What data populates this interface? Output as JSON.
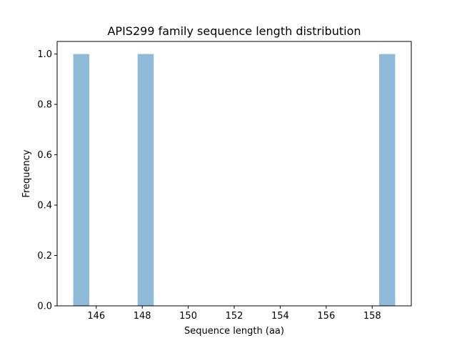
{
  "chart_data": {
    "type": "bar",
    "title": "APIS299 family sequence length distribution",
    "xlabel": "Sequence length (aa)",
    "ylabel": "Frequency",
    "bins": [
      {
        "start": 145.0,
        "end": 145.7,
        "count": 1
      },
      {
        "start": 147.8,
        "end": 148.5,
        "count": 1
      },
      {
        "start": 158.3,
        "end": 159.0,
        "count": 1
      }
    ],
    "xlim": [
      144.3,
      159.7
    ],
    "ylim": [
      0,
      1.05
    ],
    "xticks": [
      "146",
      "148",
      "150",
      "152",
      "154",
      "156",
      "158"
    ],
    "yticks": [
      "0.0",
      "0.2",
      "0.4",
      "0.6",
      "0.8",
      "1.0"
    ],
    "grid": false,
    "bar_color": "#8fbbd9"
  }
}
